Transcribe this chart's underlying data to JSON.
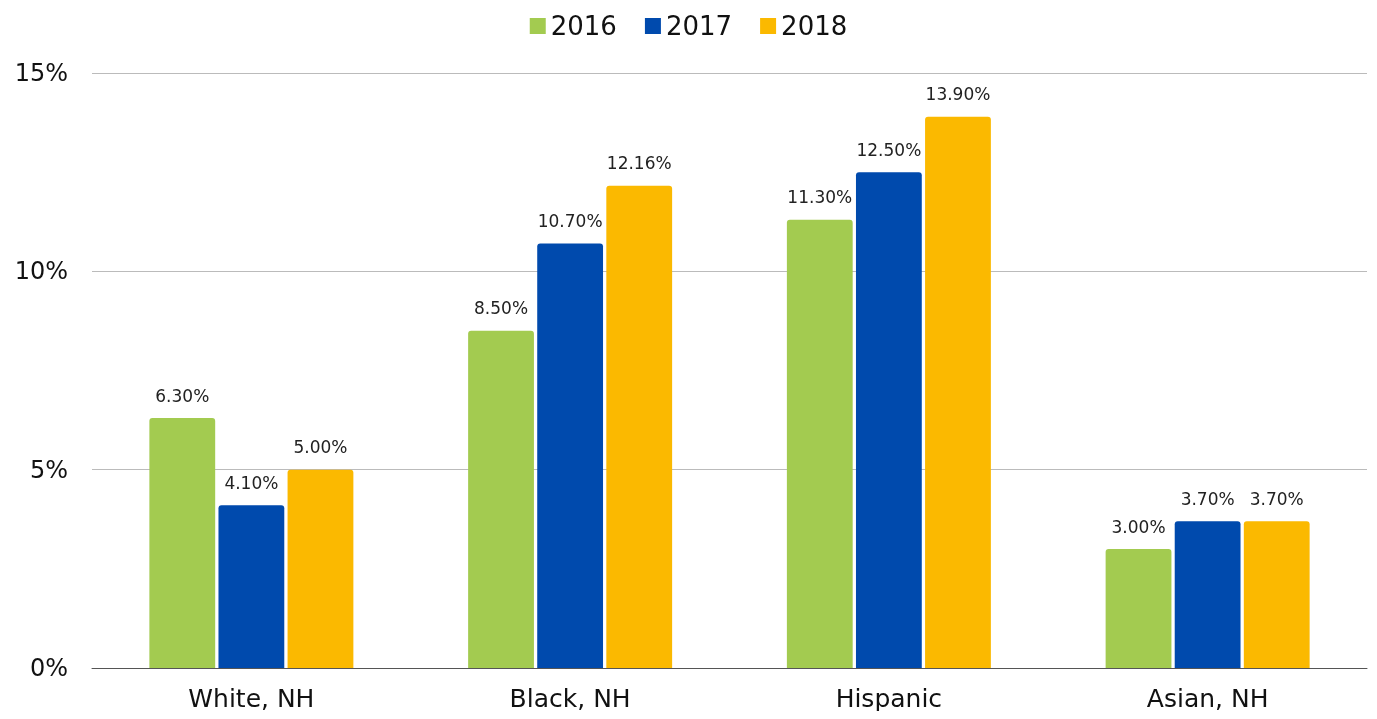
{
  "chart_data": {
    "type": "bar",
    "categories": [
      "White, NH",
      "Black, NH",
      "Hispanic",
      "Asian, NH"
    ],
    "series": [
      {
        "name": "2016",
        "color": "#a3cb50",
        "values": [
          6.3,
          8.5,
          11.3,
          3.0
        ],
        "value_labels": [
          "6.30%",
          "8.50%",
          "11.30%",
          "3.00%"
        ]
      },
      {
        "name": "2017",
        "color": "#004aad",
        "values": [
          4.1,
          10.7,
          12.5,
          3.7
        ],
        "value_labels": [
          "4.10%",
          "10.70%",
          "12.50%",
          "3.70%"
        ]
      },
      {
        "name": "2018",
        "color": "#fbb900",
        "values": [
          5.0,
          12.16,
          13.9,
          3.7
        ],
        "value_labels": [
          "5.00%",
          "12.16%",
          "13.90%",
          "3.70%"
        ]
      }
    ],
    "ylim": [
      0,
      15
    ],
    "yticks": [
      {
        "value": 0,
        "label": "0%"
      },
      {
        "value": 5,
        "label": "5%"
      },
      {
        "value": 10,
        "label": "10%"
      },
      {
        "value": 15,
        "label": "15%"
      }
    ],
    "grid": "y",
    "legend": "top"
  }
}
